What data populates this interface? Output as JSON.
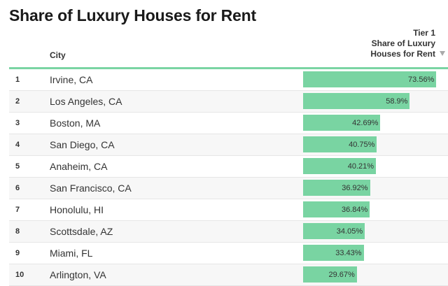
{
  "title": "Share of Luxury Houses for Rent",
  "columns": {
    "city": "City",
    "share_line1": "Tier 1",
    "share_line2": "Share of Luxury",
    "share_line3": "Houses for Rent"
  },
  "colors": {
    "bar": "#79d4a2",
    "rule": "#7ad4a3"
  },
  "chart_data": {
    "type": "table",
    "title": "Share of Luxury Houses for Rent",
    "columns": [
      "City",
      "Tier 1 Share of Luxury Houses for Rent"
    ],
    "xlim": [
      0,
      80
    ],
    "sort": "descending",
    "rows": [
      {
        "rank": "1",
        "city": "Irvine, CA",
        "value": 73.56,
        "label": "73.56%"
      },
      {
        "rank": "2",
        "city": "Los Angeles, CA",
        "value": 58.9,
        "label": "58.9%"
      },
      {
        "rank": "3",
        "city": "Boston, MA",
        "value": 42.69,
        "label": "42.69%"
      },
      {
        "rank": "4",
        "city": "San Diego, CA",
        "value": 40.75,
        "label": "40.75%"
      },
      {
        "rank": "5",
        "city": "Anaheim, CA",
        "value": 40.21,
        "label": "40.21%"
      },
      {
        "rank": "6",
        "city": "San Francisco, CA",
        "value": 36.92,
        "label": "36.92%"
      },
      {
        "rank": "7",
        "city": "Honolulu, HI",
        "value": 36.84,
        "label": "36.84%"
      },
      {
        "rank": "8",
        "city": "Scottsdale, AZ",
        "value": 34.05,
        "label": "34.05%"
      },
      {
        "rank": "9",
        "city": "Miami, FL",
        "value": 33.43,
        "label": "33.43%"
      },
      {
        "rank": "10",
        "city": "Arlington, VA",
        "value": 29.67,
        "label": "29.67%"
      }
    ]
  }
}
